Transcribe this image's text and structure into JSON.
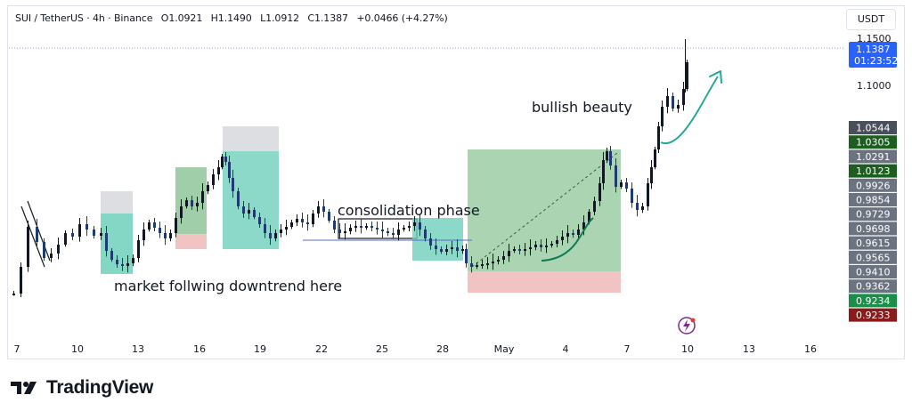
{
  "header": {
    "symbol": "SUI / TetherUS · 4h · Binance",
    "open": "O1.0921",
    "high": "H1.1490",
    "low": "L1.0912",
    "close": "C1.1387",
    "change": "+0.0466 (+4.27%)"
  },
  "currency": "USDT",
  "price_tag": {
    "price": "1.1387",
    "countdown": "01:23:52",
    "color": "#2962ff"
  },
  "brand": "TradingView",
  "colors": {
    "up": "#131722",
    "down": "#1e3a6e",
    "bull_zone": "#8fc69a",
    "bear_zone": "#f0b8b8",
    "teal_zone": "#6fd0bb",
    "arrow": "#26a69a"
  },
  "chart_data": {
    "type": "candlestick",
    "title": "SUI / TetherUS · 4h · Binance",
    "x_ticks": [
      "7",
      "10",
      "13",
      "16",
      "19",
      "22",
      "25",
      "28",
      "May",
      "4",
      "7",
      "10",
      "13",
      "16"
    ],
    "y_ticks": [
      "1.1500",
      "1.1000"
    ],
    "price_labels": [
      {
        "text": "1.0544",
        "color": "#4a4f5c"
      },
      {
        "text": "1.0305",
        "color": "#1b5e20"
      },
      {
        "text": "1.0291",
        "color": "#6b7280"
      },
      {
        "text": "1.0123",
        "color": "#1b5e20"
      },
      {
        "text": "0.9926",
        "color": "#6b7280"
      },
      {
        "text": "0.9854",
        "color": "#6b7280"
      },
      {
        "text": "0.9729",
        "color": "#6b7280"
      },
      {
        "text": "0.9698",
        "color": "#6b7280"
      },
      {
        "text": "0.9615",
        "color": "#6b7280"
      },
      {
        "text": "0.9565",
        "color": "#6b7280"
      },
      {
        "text": "0.9410",
        "color": "#6b7280"
      },
      {
        "text": "0.9362",
        "color": "#6b7280"
      },
      {
        "text": "0.9234",
        "color": "#1b8f4a"
      },
      {
        "text": "0.9233",
        "color": "#8b1a1a"
      }
    ],
    "annotations": [
      "market follwing downtrend here",
      "consolidation phase",
      "bullish beauty"
    ],
    "ohlc": {
      "open": 1.0921,
      "high": 1.149,
      "low": 1.0912,
      "close": 1.1387
    }
  }
}
